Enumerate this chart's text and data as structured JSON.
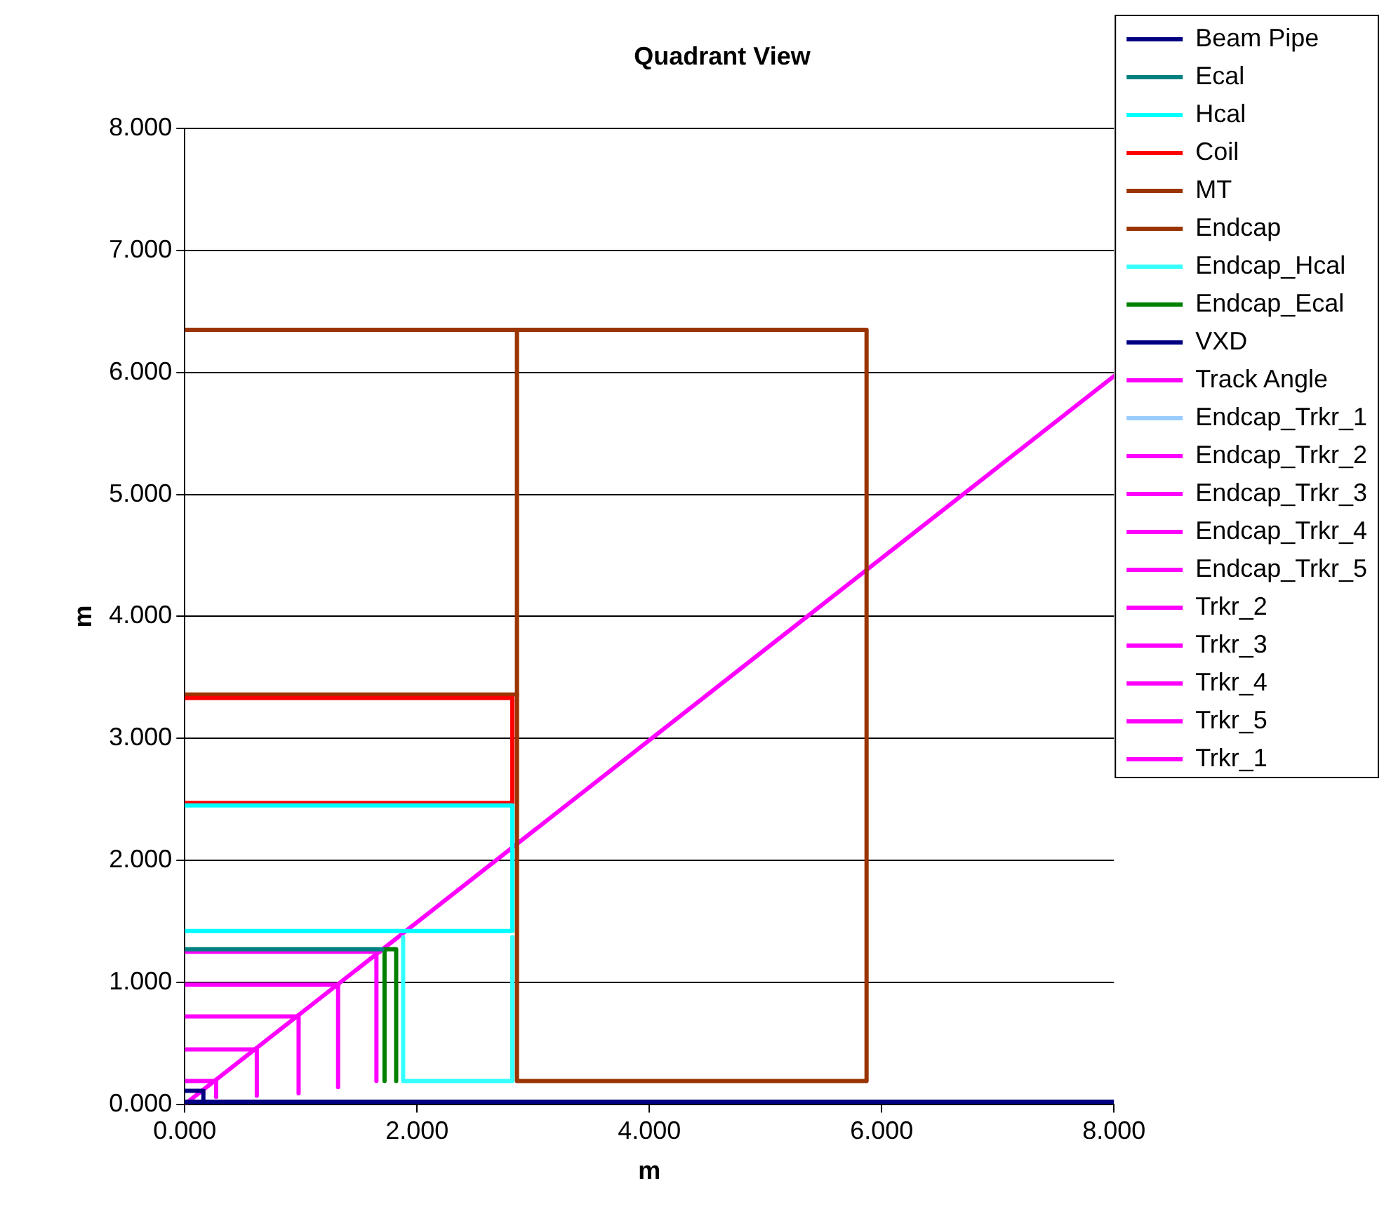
{
  "chart_data": {
    "type": "line",
    "title": "Quadrant View",
    "xlabel": "m",
    "ylabel": "m",
    "xlim": [
      0,
      8
    ],
    "ylim": [
      0,
      8
    ],
    "xticks": [
      {
        "value": 0,
        "label": "0.000"
      },
      {
        "value": 2,
        "label": "2.000"
      },
      {
        "value": 4,
        "label": "4.000"
      },
      {
        "value": 6,
        "label": "6.000"
      },
      {
        "value": 8,
        "label": "8.000"
      }
    ],
    "yticks": [
      {
        "value": 0,
        "label": "0.000"
      },
      {
        "value": 1,
        "label": "1.000"
      },
      {
        "value": 2,
        "label": "2.000"
      },
      {
        "value": 3,
        "label": "3.000"
      },
      {
        "value": 4,
        "label": "4.000"
      },
      {
        "value": 5,
        "label": "5.000"
      },
      {
        "value": 6,
        "label": "6.000"
      },
      {
        "value": 7,
        "label": "7.000"
      },
      {
        "value": 8,
        "label": "8.000"
      }
    ],
    "grid": "y",
    "legend": "right",
    "marker": "none",
    "line_style": "solid",
    "series": [
      {
        "name": "Beam Pipe",
        "color": "#000080",
        "x": [
          0,
          8
        ],
        "values": [
          0.02,
          0.02
        ]
      },
      {
        "name": "Ecal",
        "color": "#008080",
        "x": [
          0,
          1.7
        ],
        "values": [
          1.27,
          1.27
        ]
      },
      {
        "name": "Hcal",
        "color": "#00ffff",
        "x": [
          0,
          2.82,
          2.82,
          0
        ],
        "values": [
          1.42,
          1.42,
          2.45,
          2.45
        ]
      },
      {
        "name": "Coil",
        "color": "#ff0000",
        "x": [
          0,
          2.82,
          2.82,
          0
        ],
        "values": [
          2.47,
          2.47,
          3.33,
          3.33
        ]
      },
      {
        "name": "MT",
        "color": "#9a3400",
        "x": [
          0,
          2.86,
          2.86,
          0
        ],
        "values": [
          3.36,
          3.36,
          6.35,
          6.35
        ]
      },
      {
        "name": "Endcap",
        "color": "#993300",
        "x": [
          2.86,
          5.87,
          5.87,
          2.86,
          2.86
        ],
        "values": [
          6.35,
          6.35,
          0.19,
          0.19,
          3.36
        ]
      },
      {
        "name": "Endcap_Hcal",
        "color": "#33ffff",
        "x": [
          1.88,
          1.88,
          2.82,
          2.82
        ],
        "values": [
          1.37,
          0.19,
          0.19,
          1.37
        ]
      },
      {
        "name": "Endcap_Ecal",
        "color": "#008000",
        "x": [
          1.72,
          1.72,
          1.82,
          1.82
        ],
        "values": [
          0.19,
          1.27,
          1.27,
          0.19
        ]
      },
      {
        "name": "VXD",
        "color": "#000080",
        "x": [
          0,
          0.16,
          0.16,
          0
        ],
        "values": [
          0.11,
          0.11,
          0.02,
          0.02
        ]
      },
      {
        "name": "Track Angle",
        "color": "#ff00ff",
        "x": [
          0,
          8
        ],
        "values": [
          0,
          5.97
        ]
      },
      {
        "name": "Endcap_Trkr_1",
        "color": "#99ccff"
      },
      {
        "name": "Endcap_Trkr_2",
        "color": "#ff00ff",
        "x": [
          0.62,
          0.62
        ],
        "values": [
          0.07,
          0.46
        ]
      },
      {
        "name": "Endcap_Trkr_3",
        "color": "#ff00ff",
        "x": [
          0.98,
          0.98
        ],
        "values": [
          0.09,
          0.73
        ]
      },
      {
        "name": "Endcap_Trkr_4",
        "color": "#ff00ff",
        "x": [
          1.32,
          1.32
        ],
        "values": [
          0.14,
          0.98
        ]
      },
      {
        "name": "Endcap_Trkr_5",
        "color": "#ff00ff",
        "x": [
          1.65,
          1.65
        ],
        "values": [
          0.19,
          1.23
        ]
      },
      {
        "name": "Trkr_2",
        "color": "#ff00ff",
        "x": [
          0,
          0.61
        ],
        "values": [
          0.45,
          0.45
        ]
      },
      {
        "name": "Trkr_3",
        "color": "#ff00ff",
        "x": [
          0,
          0.97
        ],
        "values": [
          0.72,
          0.72
        ]
      },
      {
        "name": "Trkr_4",
        "color": "#ff00ff",
        "x": [
          0,
          1.32
        ],
        "values": [
          0.98,
          0.98
        ]
      },
      {
        "name": "Trkr_5",
        "color": "#ff00ff",
        "x": [
          0,
          1.68
        ],
        "values": [
          1.25,
          1.25
        ]
      },
      {
        "name": "Trkr_1",
        "color": "#ff00ff",
        "x": [
          0,
          0.27,
          0.27
        ],
        "values": [
          0.19,
          0.19,
          0.06
        ]
      }
    ]
  }
}
